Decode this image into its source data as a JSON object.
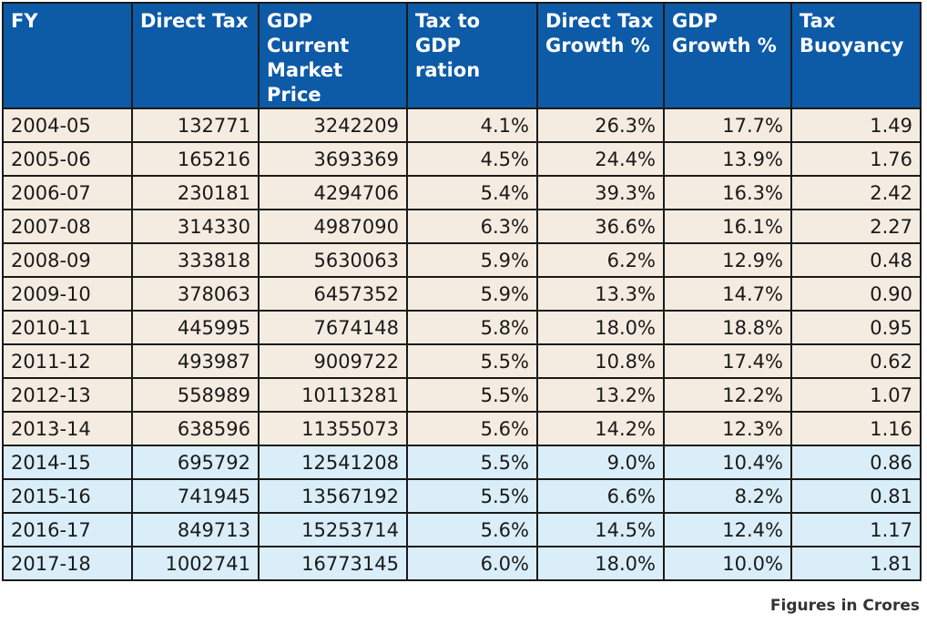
{
  "chart_data": {
    "type": "table",
    "columns": [
      [
        "FY"
      ],
      [
        "Direct Tax"
      ],
      [
        "GDP Current",
        "Market Price"
      ],
      [
        "Tax to",
        "GDP ration"
      ],
      [
        "Direct Tax",
        "Growth %"
      ],
      [
        "GDP",
        "Growth %"
      ],
      [
        "Tax",
        "Buoyancy"
      ]
    ],
    "rows": [
      [
        "2004-05",
        "132771",
        "3242209",
        "4.1%",
        "26.3%",
        "17.7%",
        "1.49"
      ],
      [
        "2005-06",
        "165216",
        "3693369",
        "4.5%",
        "24.4%",
        "13.9%",
        "1.76"
      ],
      [
        "2006-07",
        "230181",
        "4294706",
        "5.4%",
        "39.3%",
        "16.3%",
        "2.42"
      ],
      [
        "2007-08",
        "314330",
        "4987090",
        "6.3%",
        "36.6%",
        "16.1%",
        "2.27"
      ],
      [
        "2008-09",
        "333818",
        "5630063",
        "5.9%",
        "6.2%",
        "12.9%",
        "0.48"
      ],
      [
        "2009-10",
        "378063",
        "6457352",
        "5.9%",
        "13.3%",
        "14.7%",
        "0.90"
      ],
      [
        "2010-11",
        "445995",
        "7674148",
        "5.8%",
        "18.0%",
        "18.8%",
        "0.95"
      ],
      [
        "2011-12",
        "493987",
        "9009722",
        "5.5%",
        "10.8%",
        "17.4%",
        "0.62"
      ],
      [
        "2012-13",
        "558989",
        "10113281",
        "5.5%",
        "13.2%",
        "12.2%",
        "1.07"
      ],
      [
        "2013-14",
        "638596",
        "11355073",
        "5.6%",
        "14.2%",
        "12.3%",
        "1.16"
      ],
      [
        "2014-15",
        "695792",
        "12541208",
        "5.5%",
        "9.0%",
        "10.4%",
        "0.86"
      ],
      [
        "2015-16",
        "741945",
        "13567192",
        "5.5%",
        "6.6%",
        "8.2%",
        "0.81"
      ],
      [
        "2016-17",
        "849713",
        "15253714",
        "5.6%",
        "14.5%",
        "12.4%",
        "1.17"
      ],
      [
        "2017-18",
        "1002741",
        "16773145",
        "6.0%",
        "18.0%",
        "10.0%",
        "1.81"
      ]
    ],
    "row_groups": [
      "beige",
      "beige",
      "beige",
      "beige",
      "beige",
      "beige",
      "beige",
      "beige",
      "beige",
      "beige",
      "blue",
      "blue",
      "blue",
      "blue"
    ],
    "footnote": "Figures in Crores"
  },
  "colors": {
    "header_bg": "#0d5aa7",
    "header_text": "#ffffff",
    "row_beige": "#f5ece1",
    "row_blue": "#d9eef9",
    "border": "#1a1a1a"
  }
}
